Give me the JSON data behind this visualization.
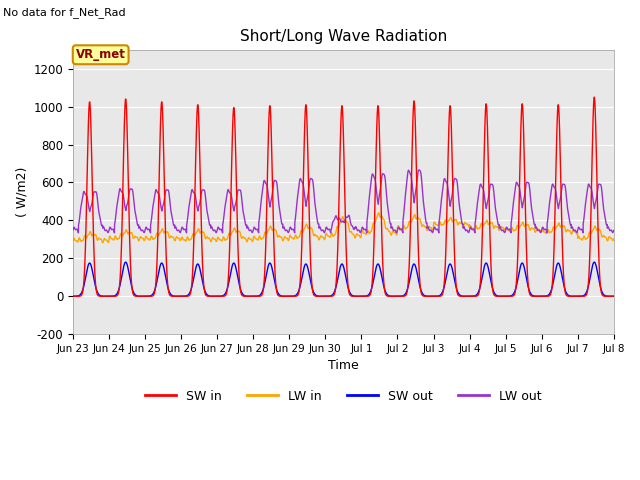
{
  "title": "Short/Long Wave Radiation",
  "xlabel": "Time",
  "ylabel": "( W/m2)",
  "top_left_text": "No data for f_Net_Rad",
  "legend_label_text": "VR_met",
  "ylim": [
    -200,
    1300
  ],
  "yticks": [
    -200,
    0,
    200,
    400,
    600,
    800,
    1000,
    1200
  ],
  "x_tick_labels": [
    "Jun 23",
    "Jun 24",
    "Jun 25",
    "Jun 26",
    "Jun 27",
    "Jun 28",
    "Jun 29",
    "Jun 30",
    "Jul 1",
    "Jul 2",
    "Jul 3",
    "Jul 4",
    "Jul 5",
    "Jul 6",
    "Jul 7",
    "Jul 8"
  ],
  "colors": {
    "SW_in": "#ff0000",
    "LW_in": "#ffa500",
    "SW_out": "#0000ff",
    "LW_out": "#9933cc",
    "background": "#ffffff",
    "plot_bg": "#e8e8e8",
    "legend_box_bg": "#ffff99",
    "legend_box_border": "#cc8800"
  },
  "n_days": 15,
  "SW_in_peaks": [
    1025,
    1040,
    1025,
    1010,
    995,
    1005,
    1010,
    1005,
    1005,
    1030,
    1005,
    1015,
    1015,
    1010,
    1050
  ],
  "SW_out_peaks": [
    175,
    180,
    175,
    170,
    175,
    175,
    170,
    170,
    170,
    170,
    170,
    175,
    175,
    175,
    180
  ],
  "LW_in_base": [
    295,
    305,
    305,
    300,
    300,
    305,
    310,
    320,
    335,
    360,
    380,
    360,
    350,
    340,
    305
  ],
  "LW_in_peaks": [
    330,
    340,
    345,
    345,
    350,
    360,
    370,
    410,
    430,
    420,
    405,
    390,
    380,
    375,
    360
  ],
  "LW_out_base": [
    350,
    350,
    350,
    350,
    350,
    350,
    350,
    350,
    350,
    350,
    350,
    350,
    350,
    350,
    350
  ],
  "LW_out_peaks": [
    555,
    570,
    565,
    565,
    565,
    615,
    625,
    420,
    650,
    670,
    625,
    595,
    605,
    595,
    595
  ]
}
